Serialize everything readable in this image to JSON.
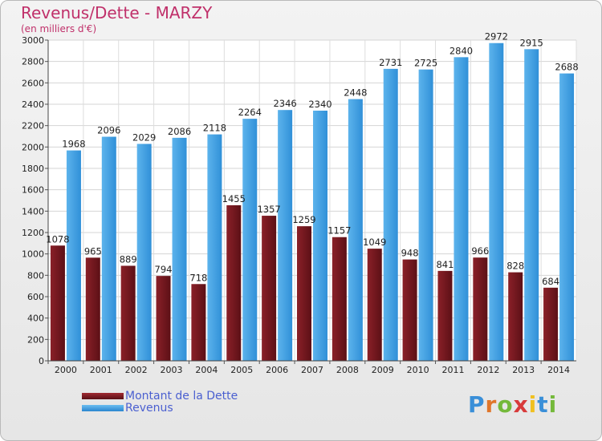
{
  "title": "Revenus/Dette - MARZY",
  "subtitle": "(en milliers d'€)",
  "logo": "Proxiti",
  "colors": {
    "dette": "#7a1820",
    "revenus": "#3b9de0",
    "title": "#c0306a",
    "legend_text": "#4a5fd0"
  },
  "chart_data": {
    "type": "bar",
    "categories": [
      "2000",
      "2001",
      "2002",
      "2003",
      "2004",
      "2005",
      "2006",
      "2007",
      "2008",
      "2009",
      "2010",
      "2011",
      "2012",
      "2013",
      "2014"
    ],
    "series": [
      {
        "name": "Montant de la Dette",
        "values": [
          1078,
          965,
          889,
          794,
          718,
          1455,
          1357,
          1259,
          1157,
          1049,
          948,
          841,
          966,
          828,
          684
        ],
        "labels": [
          "1078",
          "965",
          "889",
          "794",
          "718",
          "1455",
          "1357",
          "1259",
          "1157",
          "1049",
          "948",
          "841",
          "966",
          "828",
          "684"
        ]
      },
      {
        "name": "Revenus",
        "values": [
          1968,
          2096,
          2029,
          2086,
          2118,
          2264,
          2346,
          2340,
          2448,
          2731,
          2725,
          2840,
          2972,
          2915,
          2688
        ],
        "labels": [
          "1968",
          "2096",
          "2029",
          "2086",
          "2118",
          "2264",
          "2346",
          "2340",
          "2448",
          "2731",
          "2725",
          "2840",
          "2972",
          "2915",
          "2688"
        ]
      }
    ],
    "yticks": [
      "0",
      "200",
      "400",
      "600",
      "800",
      "1000",
      "1200",
      "1400",
      "1600",
      "1800",
      "2000",
      "2200",
      "2400",
      "2600",
      "2800",
      "3000"
    ],
    "ylim": [
      0,
      3000
    ],
    "grid": true,
    "legend_position": "bottom-left"
  }
}
